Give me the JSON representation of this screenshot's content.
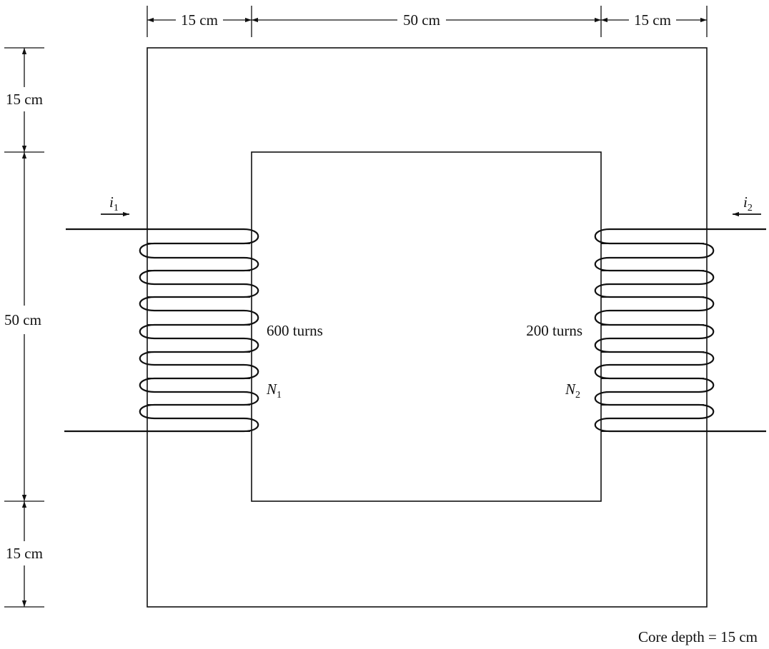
{
  "dimensions": {
    "top_left_leg": "15 cm",
    "top_window": "50 cm",
    "top_right_leg": "15 cm",
    "left_top_yoke": "15 cm",
    "left_window": "50 cm",
    "left_bottom_yoke": "15 cm"
  },
  "coil1": {
    "current_symbol": "i",
    "current_subscript": "1",
    "turns_label": "600 turns",
    "winding_symbol": "N",
    "winding_subscript": "1"
  },
  "coil2": {
    "current_symbol": "i",
    "current_subscript": "2",
    "turns_label": "200 turns",
    "winding_symbol": "N",
    "winding_subscript": "2"
  },
  "core_depth_note": "Core depth = 15 cm",
  "colors": {
    "ink": "#111111",
    "background": "#ffffff"
  }
}
